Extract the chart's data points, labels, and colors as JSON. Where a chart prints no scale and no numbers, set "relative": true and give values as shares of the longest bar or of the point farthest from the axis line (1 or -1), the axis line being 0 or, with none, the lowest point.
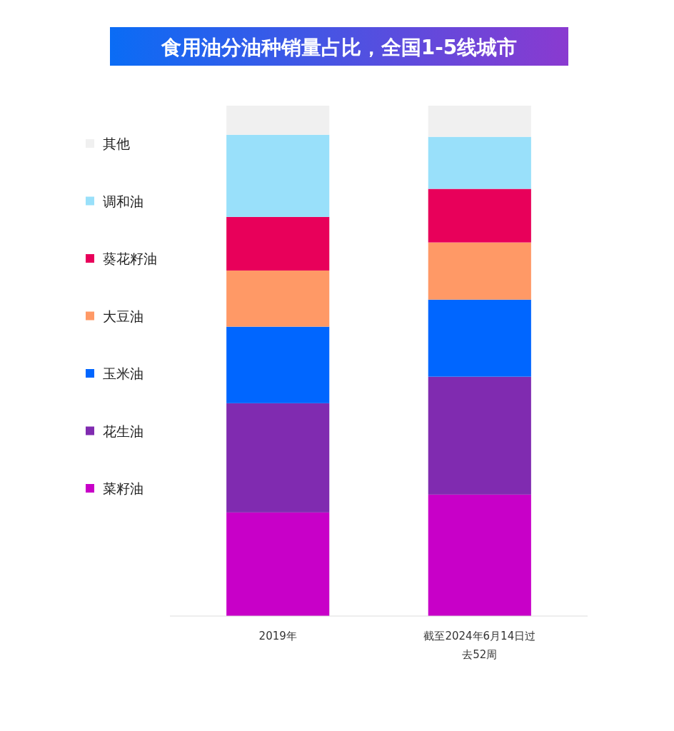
{
  "chart_data": {
    "type": "bar",
    "title": "食用油分油种销量占比，全国1-5线城市",
    "stacked": true,
    "relative": true,
    "legend": "left",
    "categories": [
      "2019年",
      "截至2024年6月14日过去52周"
    ],
    "series": [
      {
        "name": "菜籽油",
        "color": "#c800c8",
        "values": [
          0.203,
          0.238
        ]
      },
      {
        "name": "花生油",
        "color": "#802bb0",
        "values": [
          0.214,
          0.231
        ]
      },
      {
        "name": "玉米油",
        "color": "#0066ff",
        "values": [
          0.15,
          0.151
        ]
      },
      {
        "name": "大豆油",
        "color": "#ff9966",
        "values": [
          0.11,
          0.112
        ]
      },
      {
        "name": "葵花籽油",
        "color": "#e8005a",
        "values": [
          0.105,
          0.105
        ]
      },
      {
        "name": "调和油",
        "color": "#99e0fa",
        "values": [
          0.161,
          0.102
        ]
      },
      {
        "name": "其他",
        "color": "#f0f0f0",
        "values": [
          0.057,
          0.061
        ]
      }
    ]
  }
}
